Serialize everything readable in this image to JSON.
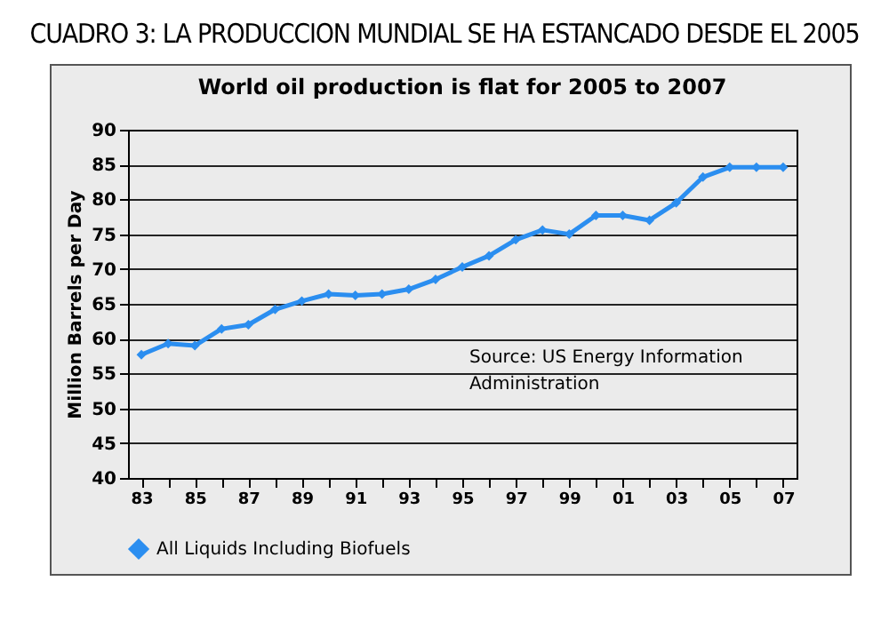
{
  "chart_data": {
    "type": "line",
    "title": "CUADRO 3: LA PRODUCCION MUNDIAL SE HA ESTANCADO DESDE EL 2005",
    "subtitle": "World oil production is flat for 2005 to 2007",
    "ylabel": "Million Barrels per Day",
    "categories": [
      "83",
      null,
      "85",
      null,
      "87",
      null,
      "89",
      null,
      "91",
      null,
      "93",
      null,
      "95",
      null,
      "97",
      null,
      "99",
      null,
      "01",
      null,
      "03",
      null,
      "05",
      null,
      "07"
    ],
    "series": [
      {
        "name": "All Liquids Including Biofuels",
        "color": "#2b8ef0",
        "values": [
          57.7,
          59.3,
          59.0,
          61.4,
          62.0,
          64.2,
          65.4,
          66.4,
          66.2,
          66.4,
          67.1,
          68.5,
          70.3,
          71.9,
          74.2,
          75.6,
          75.0,
          77.7,
          77.7,
          77.0,
          79.5,
          83.2,
          84.6,
          84.6,
          84.6
        ]
      }
    ],
    "ylim": [
      40,
      90
    ],
    "yticks": [
      40,
      45,
      50,
      55,
      60,
      65,
      70,
      75,
      80,
      85,
      90
    ],
    "grid": "y",
    "legend": "bottom",
    "marker": "diamond",
    "line_style": "solid",
    "annotations": [
      "Source: US Energy Information Administration"
    ]
  }
}
